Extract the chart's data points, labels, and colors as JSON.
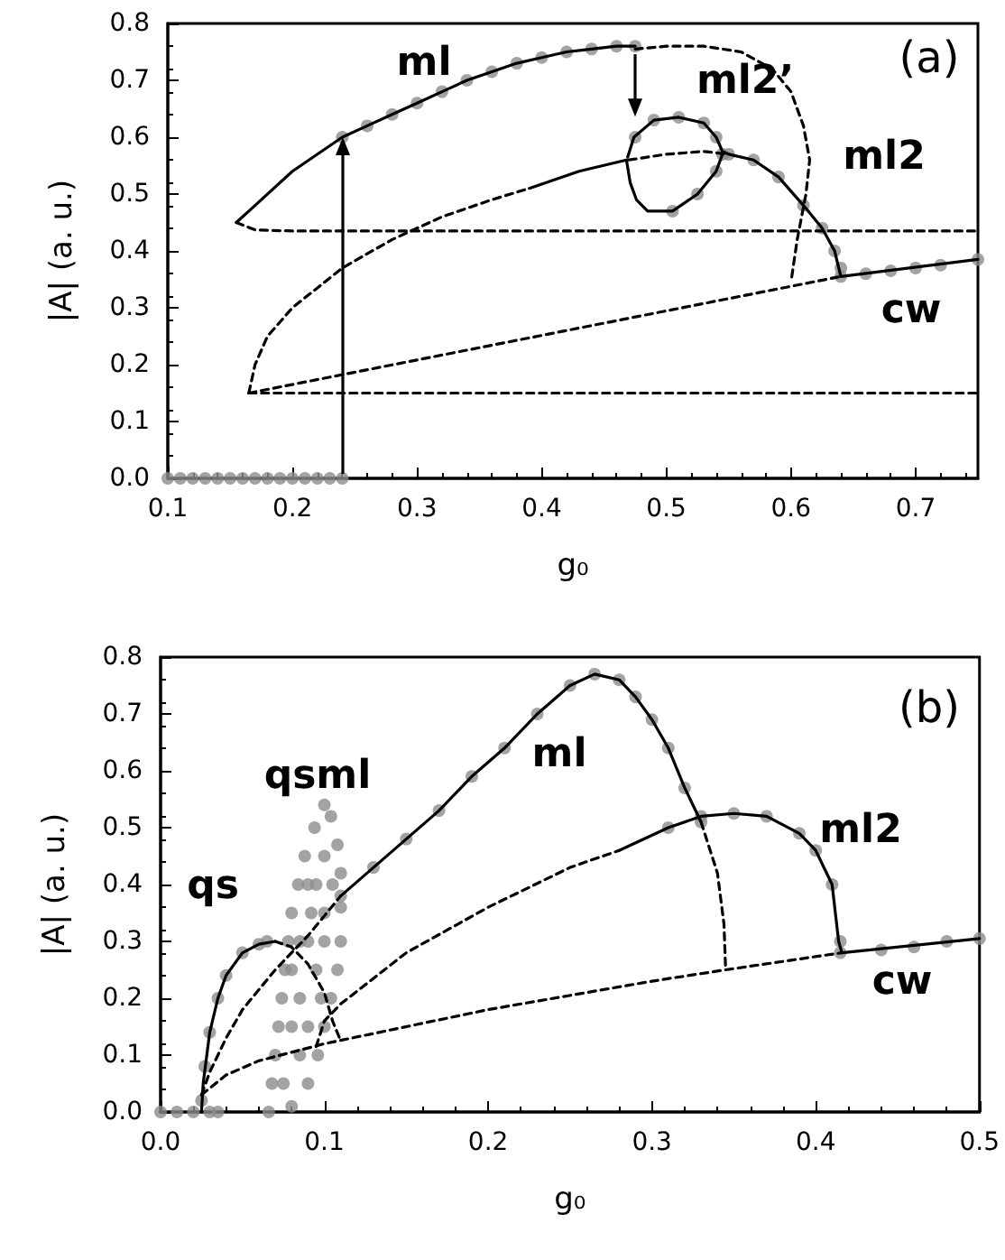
{
  "chart_data": [
    {
      "type": "line",
      "xlabel": "g₀",
      "ylabel": "|A| (a. u.)",
      "xlim": [
        0.1,
        0.75
      ],
      "xticks": [
        0.1,
        0.2,
        0.3,
        0.4,
        0.5,
        0.6,
        0.7
      ],
      "ylim": [
        0,
        0.8
      ],
      "yticks": [
        {
          "value": 0,
          "label": "0.0"
        },
        0.1,
        0.2,
        0.3,
        0.4,
        0.5,
        0.6,
        0.7,
        0.8
      ],
      "annotations": [
        "(a)",
        "ml",
        "ml2’",
        "ml2",
        "cw"
      ],
      "series": [
        {
          "type": "scatter",
          "marker": "circle",
          "color": "#8c8c8c",
          "x": [
            0.1,
            0.11,
            0.12,
            0.13,
            0.14,
            0.15,
            0.16,
            0.17,
            0.18,
            0.19,
            0.2,
            0.21,
            0.22,
            0.23,
            0.24
          ],
          "values": [
            0,
            0,
            0,
            0,
            0,
            0,
            0,
            0,
            0,
            0,
            0,
            0,
            0,
            0,
            0
          ]
        },
        {
          "type": "scatter",
          "marker": "circle",
          "color": "#8c8c8c",
          "x": [
            0.24,
            0.26,
            0.28,
            0.3,
            0.32,
            0.34,
            0.36,
            0.38,
            0.4,
            0.42,
            0.44,
            0.46,
            0.475
          ],
          "values": [
            0.6,
            0.62,
            0.64,
            0.66,
            0.68,
            0.7,
            0.715,
            0.73,
            0.74,
            0.75,
            0.755,
            0.76,
            0.76
          ]
        },
        {
          "type": "scatter",
          "marker": "circle",
          "color": "#8c8c8c",
          "x": [
            0.475,
            0.49,
            0.51,
            0.53,
            0.54,
            0.545,
            0.54,
            0.525,
            0.505
          ],
          "values": [
            0.6,
            0.63,
            0.635,
            0.625,
            0.6,
            0.57,
            0.54,
            0.5,
            0.47
          ]
        },
        {
          "type": "scatter",
          "marker": "circle",
          "color": "#8c8c8c",
          "x": [
            0.55,
            0.57,
            0.59,
            0.61,
            0.625,
            0.635,
            0.64
          ],
          "values": [
            0.57,
            0.56,
            0.53,
            0.48,
            0.44,
            0.4,
            0.37
          ]
        },
        {
          "type": "scatter",
          "marker": "circle",
          "color": "#8c8c8c",
          "x": [
            0.64,
            0.66,
            0.68,
            0.7,
            0.72,
            0.75
          ],
          "values": [
            0.355,
            0.36,
            0.365,
            0.37,
            0.375,
            0.385
          ]
        },
        {
          "line_style": "solid",
          "color": "#000000",
          "x": [
            0.155,
            0.17,
            0.2,
            0.24,
            0.26,
            0.28,
            0.3,
            0.32,
            0.34,
            0.36,
            0.38,
            0.4,
            0.42,
            0.44,
            0.46,
            0.475
          ],
          "values": [
            0.45,
            0.48,
            0.54,
            0.6,
            0.62,
            0.64,
            0.66,
            0.68,
            0.7,
            0.715,
            0.73,
            0.74,
            0.75,
            0.755,
            0.76,
            0.76
          ]
        },
        {
          "line_style": "dashed",
          "color": "#000000",
          "x": [
            0.155,
            0.17,
            0.2,
            0.75
          ],
          "values": [
            0.45,
            0.437,
            0.435,
            0.435
          ]
        },
        {
          "line_style": "dashed",
          "color": "#000000",
          "x": [
            0.475,
            0.5,
            0.53,
            0.56,
            0.585,
            0.6,
            0.61,
            0.615,
            0.612,
            0.605,
            0.6
          ],
          "values": [
            0.755,
            0.76,
            0.76,
            0.75,
            0.72,
            0.68,
            0.62,
            0.56,
            0.5,
            0.42,
            0.345
          ]
        },
        {
          "line_style": "dashed",
          "color": "#000000",
          "x": [
            0.165,
            0.17,
            0.18,
            0.2,
            0.24,
            0.28,
            0.32,
            0.36,
            0.39
          ],
          "values": [
            0.15,
            0.2,
            0.25,
            0.3,
            0.37,
            0.42,
            0.46,
            0.49,
            0.51
          ]
        },
        {
          "line_style": "solid",
          "color": "#000000",
          "x": [
            0.39,
            0.43,
            0.468,
            0.471,
            0.476,
            0.485,
            0.505,
            0.525,
            0.54,
            0.545
          ],
          "values": [
            0.51,
            0.54,
            0.56,
            0.52,
            0.49,
            0.47,
            0.47,
            0.5,
            0.54,
            0.57
          ]
        },
        {
          "line_style": "dashed",
          "color": "#000000",
          "x": [
            0.47,
            0.5,
            0.53,
            0.55
          ],
          "values": [
            0.56,
            0.57,
            0.575,
            0.57
          ]
        },
        {
          "line_style": "solid",
          "color": "#000000",
          "x": [
            0.469,
            0.474,
            0.49,
            0.51,
            0.53,
            0.54,
            0.545,
            0.55,
            0.57,
            0.59,
            0.61,
            0.625,
            0.635,
            0.64,
            0.75
          ],
          "values": [
            0.565,
            0.6,
            0.63,
            0.635,
            0.625,
            0.6,
            0.575,
            0.57,
            0.56,
            0.53,
            0.48,
            0.44,
            0.4,
            0.355,
            0.385
          ]
        },
        {
          "line_style": "dashed",
          "color": "#000000",
          "x": [
            0.165,
            0.64
          ],
          "values": [
            0.15,
            0.355
          ]
        },
        {
          "line_style": "dashed",
          "color": "#000000",
          "x": [
            0.165,
            0.75
          ],
          "values": [
            0.15,
            0.15
          ]
        }
      ]
    },
    {
      "type": "line",
      "xlabel": "g₀",
      "ylabel": "|A| (a. u.)",
      "xlim": [
        0,
        0.5
      ],
      "xticks": [
        {
          "value": 0,
          "label": "0.0"
        },
        0.1,
        0.2,
        0.3,
        0.4,
        0.5
      ],
      "ylim": [
        0,
        0.8
      ],
      "yticks": [
        {
          "value": 0,
          "label": "0.0"
        },
        0.1,
        0.2,
        0.3,
        0.4,
        0.5,
        0.6,
        0.7,
        0.8
      ],
      "annotations": [
        "(b)",
        "qs",
        "qsml",
        "ml",
        "ml2",
        "cw"
      ],
      "series": [
        {
          "type": "scatter",
          "marker": "circle",
          "color": "#8c8c8c",
          "x": [
            0,
            0.01,
            0.02,
            0.03,
            0.035
          ],
          "values": [
            0,
            0,
            0,
            0,
            0
          ]
        },
        {
          "type": "scatter",
          "marker": "circle",
          "color": "#8c8c8c",
          "x": [
            0.025,
            0.027,
            0.03,
            0.035,
            0.04,
            0.05,
            0.06,
            0.065
          ],
          "values": [
            0.02,
            0.08,
            0.14,
            0.2,
            0.24,
            0.28,
            0.295,
            0.3
          ]
        },
        {
          "type": "scatter",
          "marker": "circle",
          "color": "#8c8c8c",
          "x": [
            0.066,
            0.068,
            0.07,
            0.072,
            0.074,
            0.076,
            0.078,
            0.08,
            0.084,
            0.088,
            0.094,
            0.1,
            0.104,
            0.108,
            0.11,
            0.11,
            0.11,
            0.108,
            0.104,
            0.1,
            0.096,
            0.09,
            0.08,
            0.085,
            0.085,
            0.09,
            0.095,
            0.1,
            0.08,
            0.075,
            0.09,
            0.095,
            0.1,
            0.1,
            0.085,
            0.09,
            0.08,
            0.098,
            0.092,
            0.105
          ],
          "values": [
            0,
            0.05,
            0.1,
            0.15,
            0.2,
            0.25,
            0.3,
            0.35,
            0.4,
            0.45,
            0.5,
            0.54,
            0.52,
            0.47,
            0.42,
            0.36,
            0.3,
            0.25,
            0.2,
            0.15,
            0.1,
            0.05,
            0.01,
            0.1,
            0.2,
            0.3,
            0.4,
            0.45,
            0.15,
            0.05,
            0.15,
            0.25,
            0.3,
            0.35,
            0.3,
            0.4,
            0.25,
            0.2,
            0.35,
            0.4
          ]
        },
        {
          "type": "scatter",
          "marker": "circle",
          "color": "#8c8c8c",
          "x": [
            0.11,
            0.13,
            0.15,
            0.17,
            0.19,
            0.21,
            0.23,
            0.25,
            0.265,
            0.28,
            0.29,
            0.3,
            0.31,
            0.32,
            0.33
          ],
          "values": [
            0.38,
            0.43,
            0.48,
            0.53,
            0.59,
            0.64,
            0.7,
            0.75,
            0.77,
            0.76,
            0.73,
            0.69,
            0.64,
            0.57,
            0.51
          ]
        },
        {
          "type": "scatter",
          "marker": "circle",
          "color": "#8c8c8c",
          "x": [
            0.31,
            0.33,
            0.35,
            0.37,
            0.39,
            0.4,
            0.41,
            0.415
          ],
          "values": [
            0.5,
            0.52,
            0.525,
            0.52,
            0.49,
            0.46,
            0.4,
            0.3
          ]
        },
        {
          "type": "scatter",
          "marker": "circle",
          "color": "#8c8c8c",
          "x": [
            0.415,
            0.44,
            0.46,
            0.48,
            0.5
          ],
          "values": [
            0.28,
            0.285,
            0.29,
            0.3,
            0.305
          ]
        },
        {
          "line_style": "solid",
          "color": "#000000",
          "x": [
            0.025,
            0.026,
            0.03,
            0.035,
            0.04,
            0.05,
            0.06,
            0.07
          ],
          "values": [
            0,
            0.05,
            0.14,
            0.2,
            0.24,
            0.28,
            0.295,
            0.3
          ]
        },
        {
          "line_style": "dashed",
          "color": "#000000",
          "x": [
            0.07,
            0.08,
            0.09,
            0.1,
            0.105,
            0.11
          ],
          "values": [
            0.3,
            0.29,
            0.26,
            0.21,
            0.16,
            0.125
          ]
        },
        {
          "line_style": "dashed",
          "color": "#000000",
          "x": [
            0.025,
            0.03,
            0.04,
            0.05,
            0.07,
            0.09,
            0.11
          ],
          "values": [
            0.03,
            0.07,
            0.13,
            0.18,
            0.25,
            0.31,
            0.38
          ]
        },
        {
          "line_style": "solid",
          "color": "#000000",
          "x": [
            0.11,
            0.13,
            0.15,
            0.17,
            0.19,
            0.21,
            0.23,
            0.25,
            0.265,
            0.28,
            0.29,
            0.3,
            0.31,
            0.32,
            0.33
          ],
          "values": [
            0.38,
            0.43,
            0.48,
            0.53,
            0.59,
            0.64,
            0.7,
            0.75,
            0.77,
            0.76,
            0.73,
            0.69,
            0.64,
            0.57,
            0.51
          ]
        },
        {
          "line_style": "dashed",
          "color": "#000000",
          "x": [
            0.33,
            0.34,
            0.344,
            0.345
          ],
          "values": [
            0.51,
            0.42,
            0.33,
            0.25
          ]
        },
        {
          "line_style": "dashed",
          "color": "#000000",
          "x": [
            0.095,
            0.1,
            0.11,
            0.15,
            0.2,
            0.25,
            0.28
          ],
          "values": [
            0.115,
            0.16,
            0.19,
            0.28,
            0.36,
            0.43,
            0.46
          ]
        },
        {
          "line_style": "solid",
          "color": "#000000",
          "x": [
            0.28,
            0.31,
            0.33,
            0.35,
            0.37,
            0.39,
            0.4,
            0.41,
            0.414,
            0.416,
            0.5
          ],
          "values": [
            0.46,
            0.5,
            0.52,
            0.525,
            0.52,
            0.49,
            0.46,
            0.4,
            0.3,
            0.28,
            0.305
          ]
        },
        {
          "line_style": "dashed",
          "color": "#000000",
          "x": [
            0.025,
            0.04,
            0.06,
            0.1,
            0.2,
            0.3,
            0.345,
            0.416
          ],
          "values": [
            0.03,
            0.065,
            0.09,
            0.12,
            0.18,
            0.23,
            0.25,
            0.28
          ]
        }
      ]
    }
  ]
}
